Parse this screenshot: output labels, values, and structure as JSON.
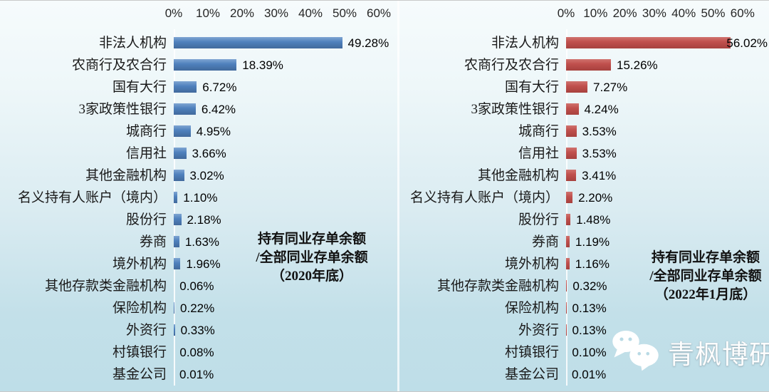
{
  "page": {
    "watermark_text": "青枫博研社"
  },
  "colors": {
    "background_top": "#f6fbfc",
    "background_bottom": "#bedee8",
    "left_bar": "#4f81bd",
    "left_bar_light": "#7fa5d2",
    "left_bar_dark": "#41699c",
    "right_bar": "#c0504d",
    "right_bar_light": "#d0736f",
    "right_bar_dark": "#a7413e"
  },
  "chart_data": [
    {
      "type": "bar",
      "orientation": "horizontal",
      "title": "持有同业存单余额/全部同业存单余额（2020年底）",
      "annotation_lines": [
        "持有同业存单余额",
        "/全部同业存单余额",
        "（2020年底）"
      ],
      "categories": [
        "非法人机构",
        "农商行及农合行",
        "国有大行",
        "3家政策性银行",
        "城商行",
        "信用社",
        "其他金融机构",
        "名义持有人账户（境内）",
        "股份行",
        "券商",
        "境外机构",
        "其他存款类金融机构",
        "保险机构",
        "外资行",
        "村镇银行",
        "基金公司"
      ],
      "values": [
        49.28,
        18.39,
        6.72,
        6.42,
        4.95,
        3.66,
        3.02,
        1.1,
        2.18,
        1.63,
        1.96,
        0.06,
        0.22,
        0.33,
        0.08,
        0.01
      ],
      "labels": [
        "49.28%",
        "18.39%",
        "6.72%",
        "6.42%",
        "4.95%",
        "3.66%",
        "3.02%",
        "1.10%",
        "2.18%",
        "1.63%",
        "1.96%",
        "0.06%",
        "0.22%",
        "0.33%",
        "0.08%",
        "0.01%"
      ],
      "x_ticks": [
        "0%",
        "10%",
        "20%",
        "30%",
        "40%",
        "50%",
        "60%"
      ],
      "xlim": [
        0,
        60
      ],
      "grid": false,
      "legend": false,
      "bar_color": "#4f81bd",
      "bar_color_light": "#7fa5d2",
      "bar_color_dark": "#41699c"
    },
    {
      "type": "bar",
      "orientation": "horizontal",
      "title": "持有同业存单余额/全部同业存单余额（2022年1月底）",
      "annotation_lines": [
        "持有同业存单余额",
        "/全部同业存单余额",
        "（2022年1月底）"
      ],
      "categories": [
        "非法人机构",
        "农商行及农合行",
        "国有大行",
        "3家政策性银行",
        "城商行",
        "信用社",
        "其他金融机构",
        "名义持有人账户（境内）",
        "股份行",
        "券商",
        "境外机构",
        "其他存款类金融机构",
        "保险机构",
        "外资行",
        "村镇银行",
        "基金公司"
      ],
      "values": [
        56.02,
        15.26,
        7.27,
        4.24,
        3.53,
        3.53,
        3.41,
        2.2,
        1.48,
        1.19,
        1.16,
        0.32,
        0.13,
        0.13,
        0.1,
        0.01
      ],
      "labels": [
        "56.02%",
        "15.26%",
        "7.27%",
        "4.24%",
        "3.53%",
        "3.53%",
        "3.41%",
        "2.20%",
        "1.48%",
        "1.19%",
        "1.16%",
        "0.32%",
        "0.13%",
        "0.13%",
        "0.10%",
        "0.01%"
      ],
      "x_ticks": [
        "0%",
        "10%",
        "20%",
        "30%",
        "40%",
        "50%",
        "60%"
      ],
      "xlim": [
        0,
        60
      ],
      "grid": false,
      "legend": false,
      "bar_color": "#c0504d",
      "bar_color_light": "#d0736f",
      "bar_color_dark": "#a7413e"
    }
  ]
}
